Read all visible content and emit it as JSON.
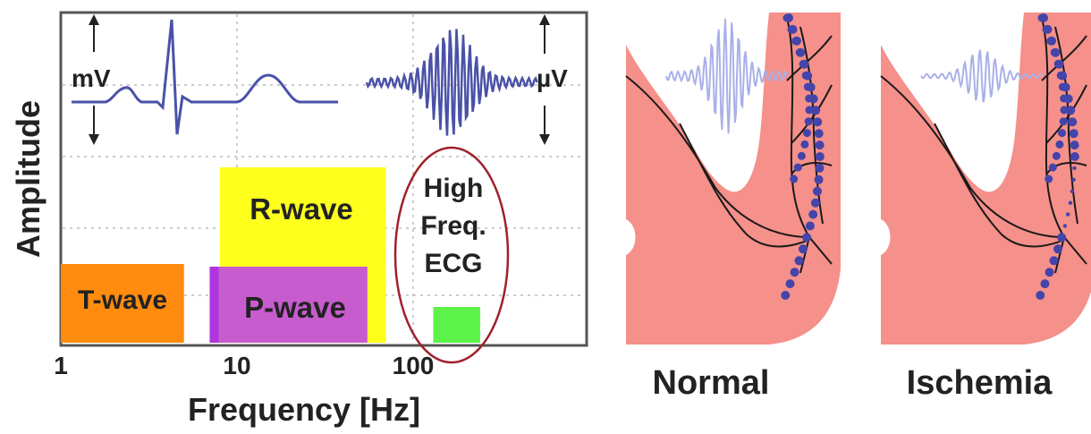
{
  "left_panel": {
    "y_axis_label": "Amplitude",
    "x_axis_label": "Frequency [Hz]",
    "x_ticks": [
      "1",
      "10",
      "100"
    ],
    "mv_label": "mV",
    "uv_label": "µV",
    "bands": [
      {
        "id": "t-wave",
        "label": "T-wave",
        "color": "#ff8c0f",
        "f_min": 1,
        "f_max": 5
      },
      {
        "id": "r-wave",
        "label": "R-wave",
        "color": "#ffff1e",
        "f_min": 8,
        "f_max": 70
      },
      {
        "id": "p-wave",
        "label": "P-wave",
        "color": "#c75ccf",
        "f_min": 7,
        "f_max": 55
      },
      {
        "id": "hf-ecg",
        "label": "",
        "color": "#5cf24a",
        "f_min": 130,
        "f_max": 240
      }
    ],
    "hf_ecg_label_lines": [
      "High",
      "Freq.",
      "ECG"
    ],
    "hf_ecg_ellipse_color": "#a0202a"
  },
  "right_panels": [
    {
      "id": "normal",
      "caption": "Normal"
    },
    {
      "id": "ischemia",
      "caption": "Ischemia"
    }
  ],
  "colors": {
    "tissue": "#f5908a",
    "signal": "#4a52a8",
    "signal_faint": "#aab0e8",
    "vessel": "#1a1a1a",
    "marker": "#4444aa"
  }
}
